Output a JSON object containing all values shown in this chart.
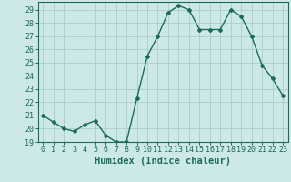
{
  "x": [
    0,
    1,
    2,
    3,
    4,
    5,
    6,
    7,
    8,
    9,
    10,
    11,
    12,
    13,
    14,
    15,
    16,
    17,
    18,
    19,
    20,
    21,
    22,
    23
  ],
  "y": [
    21,
    20.5,
    20,
    19.8,
    20.3,
    20.6,
    19.5,
    19.0,
    19.0,
    22.3,
    25.5,
    27.0,
    28.8,
    29.3,
    29.0,
    27.5,
    27.5,
    27.5,
    29.0,
    28.5,
    27.0,
    24.8,
    23.8,
    22.5
  ],
  "xlim": [
    -0.5,
    23.5
  ],
  "ylim": [
    19,
    29.6
  ],
  "yticks": [
    19,
    20,
    21,
    22,
    23,
    24,
    25,
    26,
    27,
    28,
    29
  ],
  "xtick_labels": [
    "0",
    "1",
    "2",
    "3",
    "4",
    "5",
    "6",
    "7",
    "8",
    "9",
    "10",
    "11",
    "12",
    "13",
    "14",
    "15",
    "16",
    "17",
    "18",
    "19",
    "20",
    "21",
    "22",
    "23"
  ],
  "xlabel": "Humidex (Indice chaleur)",
  "line_color": "#1a6b5a",
  "marker": "D",
  "marker_size": 2.0,
  "bg_color": "#cce8e8",
  "grid_color": "#b0d0d0",
  "spine_color": "#1a6b5a",
  "tick_color": "#1a6b5a",
  "label_color": "#1a6b5a",
  "xlabel_fontsize": 7.5,
  "tick_fontsize": 6.0
}
